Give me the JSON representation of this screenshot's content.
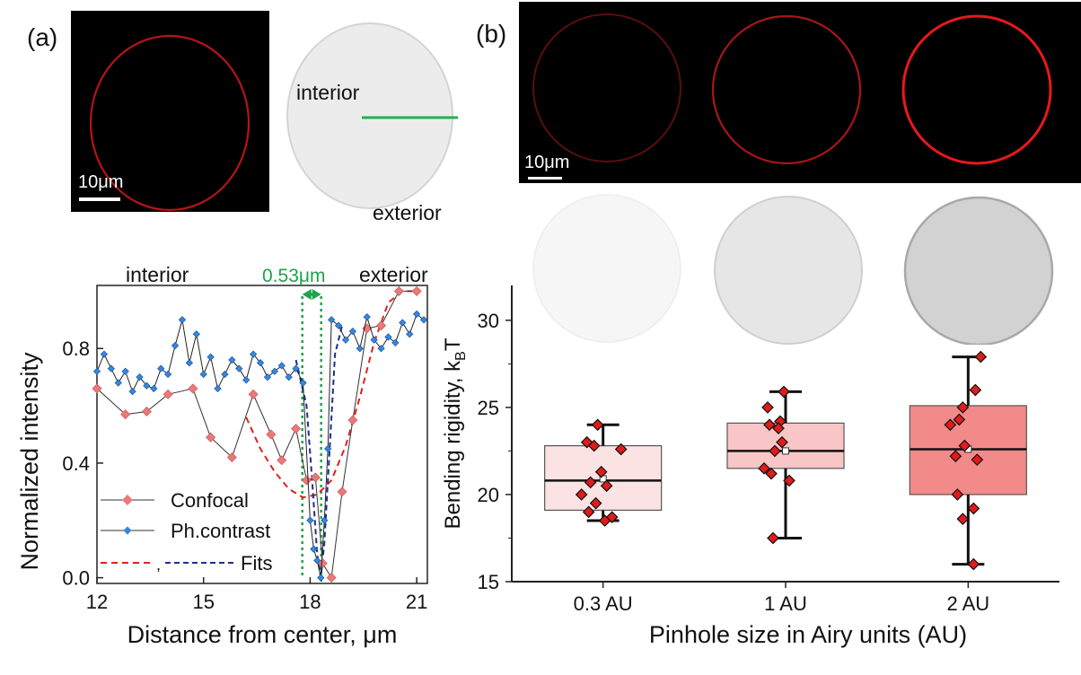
{
  "panel_a": {
    "label": "(a)",
    "confocal_image": {
      "scale_label": "10μm"
    },
    "phase_image": {
      "interior_label": "interior",
      "exterior_label": "exterior"
    }
  },
  "panel_b": {
    "label": "(b)",
    "confocal_images": {
      "scale_label": "10μm"
    }
  },
  "colors": {
    "confocal": "#e87a7a",
    "phase_contrast": "#3a86d8",
    "fit_confocal": "#e0201e",
    "fit_phase": "#1d2f8f",
    "gap_marker": "#1fa24a",
    "box_03": "#fbe3e3",
    "box_1": "#f8c6c6",
    "box_2": "#f28a8a",
    "points": "#e11b1b"
  },
  "chart_data": [
    {
      "type": "line",
      "xlabel": "Distance from center, μm",
      "ylabel": "Normalized intensity",
      "xlim": [
        12,
        21.3
      ],
      "ylim": [
        -0.02,
        1.02
      ],
      "xticks": [
        12,
        15,
        18,
        21
      ],
      "yticks": [
        0.0,
        0.4,
        0.8
      ],
      "annotations": {
        "interior": "interior",
        "exterior": "exterior",
        "gap": "0.53μm"
      },
      "gap_x": [
        17.78,
        18.31
      ],
      "legend_placement": "bottom-left",
      "fits_legend": "Fits",
      "fits_legend_separator": ",",
      "series": [
        {
          "name": "Confocal",
          "x": [
            12.0,
            12.8,
            13.4,
            14.0,
            14.7,
            15.2,
            15.8,
            16.4,
            16.9,
            17.2,
            17.6,
            17.9,
            18.15,
            18.35,
            18.6,
            18.9,
            19.2,
            19.6,
            20.0,
            20.5,
            21.0
          ],
          "y": [
            0.66,
            0.57,
            0.58,
            0.64,
            0.66,
            0.49,
            0.42,
            0.64,
            0.5,
            0.41,
            0.52,
            0.34,
            0.35,
            0.05,
            0.0,
            0.3,
            0.55,
            0.87,
            0.88,
            1.0,
            1.0
          ]
        },
        {
          "name": "Ph.contrast",
          "x": [
            12.0,
            12.2,
            12.4,
            12.6,
            12.8,
            13.0,
            13.2,
            13.4,
            13.6,
            13.8,
            14.0,
            14.2,
            14.4,
            14.6,
            14.8,
            15.0,
            15.2,
            15.4,
            15.6,
            15.8,
            16.0,
            16.2,
            16.4,
            16.6,
            16.8,
            17.0,
            17.2,
            17.4,
            17.6,
            17.8,
            18.0,
            18.1,
            18.2,
            18.3,
            18.4,
            18.5,
            18.6,
            18.8,
            19.0,
            19.2,
            19.4,
            19.6,
            19.8,
            20.0,
            20.2,
            20.4,
            20.6,
            20.8,
            21.0,
            21.2
          ],
          "y": [
            0.72,
            0.78,
            0.73,
            0.68,
            0.72,
            0.65,
            0.7,
            0.67,
            0.66,
            0.73,
            0.71,
            0.81,
            0.9,
            0.75,
            0.85,
            0.71,
            0.77,
            0.66,
            0.71,
            0.76,
            0.73,
            0.69,
            0.78,
            0.75,
            0.7,
            0.72,
            0.74,
            0.7,
            0.73,
            0.68,
            0.2,
            0.1,
            0.06,
            0.0,
            0.2,
            0.45,
            0.9,
            0.88,
            0.83,
            0.86,
            0.8,
            0.91,
            0.83,
            0.8,
            0.84,
            0.82,
            0.89,
            0.85,
            0.92,
            0.9
          ]
        }
      ]
    },
    {
      "type": "box",
      "xlabel": "Pinhole size in Airy units (AU)",
      "ylabel_main": "Bending rigidity, k",
      "ylabel_sub": "B",
      "ylabel_end": "T",
      "ylim": [
        15,
        32
      ],
      "yticks": [
        15,
        20,
        25,
        30
      ],
      "categories": [
        "0.3 AU",
        "1 AU",
        "2 AU"
      ],
      "boxes": [
        {
          "q1": 19.1,
          "median": 20.8,
          "q3": 22.8,
          "whisker_low": 18.5,
          "whisker_high": 24.0,
          "mean": 20.9,
          "points": [
            24.0,
            23.0,
            22.8,
            22.6,
            21.3,
            20.7,
            20.5,
            20.0,
            19.5,
            19.0,
            18.7,
            18.5
          ]
        },
        {
          "q1": 21.5,
          "median": 22.5,
          "q3": 24.1,
          "whisker_low": 17.5,
          "whisker_high": 25.9,
          "mean": 22.5,
          "points": [
            25.9,
            25.0,
            24.2,
            24.0,
            23.8,
            23.0,
            22.5,
            21.5,
            21.2,
            20.8,
            17.5
          ]
        },
        {
          "q1": 20.0,
          "median": 22.6,
          "q3": 25.1,
          "whisker_low": 16.0,
          "whisker_high": 27.9,
          "mean": 22.6,
          "points": [
            27.9,
            26.0,
            25.0,
            24.3,
            24.0,
            22.8,
            22.2,
            22.0,
            20.0,
            19.2,
            18.6,
            16.0
          ]
        }
      ]
    }
  ]
}
